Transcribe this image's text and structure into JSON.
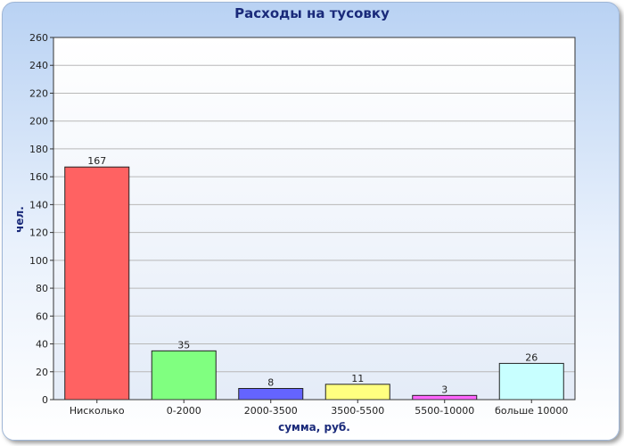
{
  "chart_data": {
    "type": "bar",
    "title": "Расходы на тусовку",
    "xlabel": "сумма, руб.",
    "ylabel": "чел.",
    "categories": [
      "Нисколько",
      "0-2000",
      "2000-3500",
      "3500-5500",
      "5500-10000",
      "больше 10000"
    ],
    "values": [
      167,
      35,
      8,
      11,
      3,
      26
    ],
    "colors": [
      "#ff6262",
      "#80ff80",
      "#6464ff",
      "#ffff80",
      "#ff64ff",
      "#c8ffff"
    ],
    "ylim": [
      0,
      260
    ],
    "yticks": [
      0,
      20,
      40,
      60,
      80,
      100,
      120,
      140,
      160,
      180,
      200,
      220,
      240,
      260
    ],
    "grid": true,
    "legend": "none"
  }
}
